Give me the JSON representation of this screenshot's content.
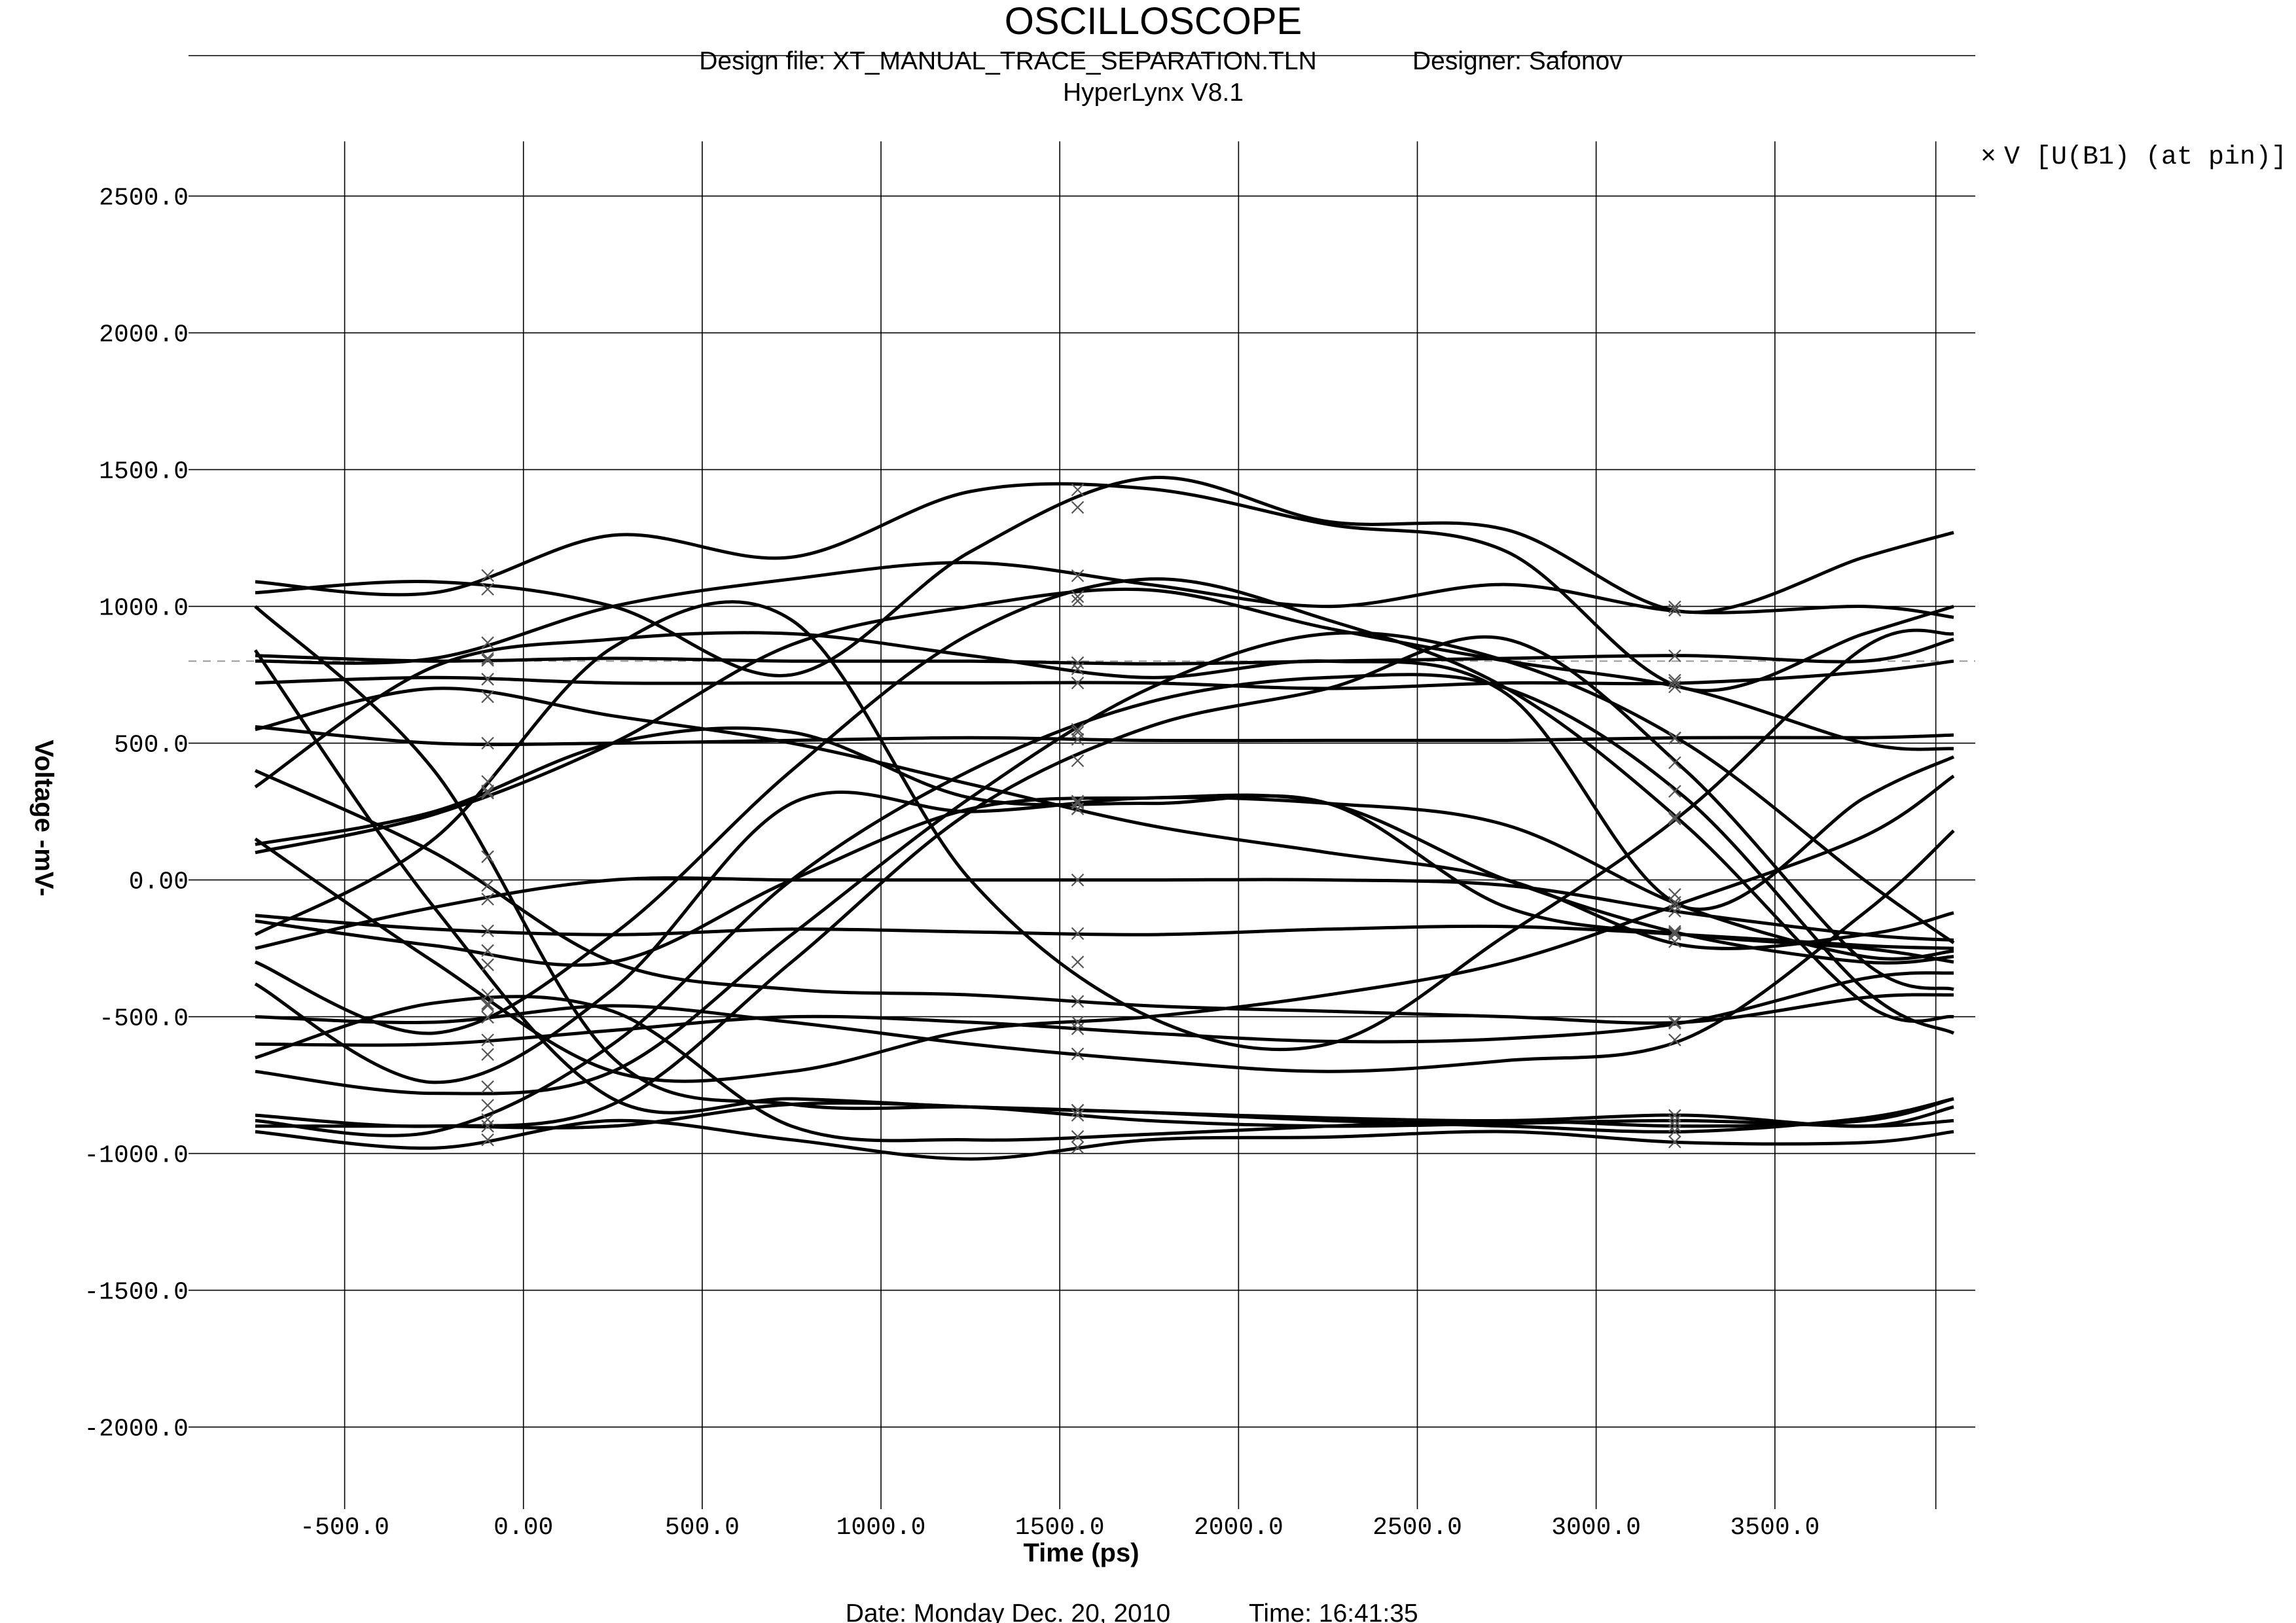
{
  "header": {
    "title": "OSCILLOSCOPE",
    "design_file": "Design file: XT_MANUAL_TRACE_SEPARATION.TLN",
    "designer": "Designer: Safonov",
    "tool": "HyperLynx V8.1"
  },
  "footer": {
    "date": "Date: Monday Dec. 20, 2010",
    "time": "Time: 16:41:35"
  },
  "legend": {
    "entry": "V [U(B1) (at pin)]",
    "marker": "×"
  },
  "chart_data": {
    "type": "line",
    "title": "OSCILLOSCOPE",
    "xlabel": "Time  (ps)",
    "ylabel": "Voltage -mV-",
    "xlim": [
      -750,
      4000
    ],
    "ylim": [
      -2300,
      2700
    ],
    "x_ticks": [
      -500,
      0,
      500,
      1000,
      1500,
      2000,
      2500,
      3000,
      3500
    ],
    "x_tick_labels": [
      "-500.0",
      "0.00",
      "500.0",
      "1000.0",
      "1500.0",
      "2000.0",
      "2500.0",
      "3000.0",
      "3500.0"
    ],
    "y_ticks": [
      2500,
      2000,
      1500,
      1000,
      500,
      0,
      -500,
      -1000,
      -1500,
      -2000
    ],
    "y_tick_labels": [
      "2500.0",
      "2000.0",
      "1500.0",
      "1000.0",
      "500.0",
      "0.00",
      "-500.0",
      "-1000.0",
      "-1500.0",
      "-2000.0"
    ],
    "x_gridlines": [
      -500,
      0,
      500,
      1000,
      1500,
      2000,
      2500,
      3000,
      3500,
      3950
    ],
    "threshold_mV": 800,
    "marker_times": [
      -100,
      1550,
      3220
    ],
    "grid": true,
    "legend_position": "top-right",
    "x": [
      -750,
      -250,
      250,
      750,
      1250,
      1750,
      2250,
      2750,
      3250,
      3750,
      4000
    ],
    "series": [
      {
        "values": [
          1090,
          1050,
          1260,
          1180,
          1420,
          1430,
          1300,
          1200,
          700,
          900,
          1000
        ]
      },
      {
        "values": [
          1050,
          1090,
          1000,
          750,
          1200,
          1470,
          1310,
          1280,
          980,
          1180,
          1270
        ]
      },
      {
        "values": [
          1000,
          400,
          -650,
          -820,
          -830,
          -850,
          -880,
          -900,
          -920,
          -870,
          -800
        ]
      },
      {
        "values": [
          840,
          -100,
          -800,
          -800,
          -830,
          -850,
          -870,
          -880,
          -860,
          -900,
          -830
        ]
      },
      {
        "values": [
          820,
          800,
          810,
          800,
          800,
          790,
          800,
          810,
          820,
          800,
          880
        ]
      },
      {
        "values": [
          800,
          810,
          1000,
          1100,
          1160,
          1080,
          1000,
          1080,
          980,
          1000,
          960
        ]
      },
      {
        "values": [
          720,
          740,
          720,
          720,
          720,
          720,
          700,
          720,
          720,
          760,
          800
        ]
      },
      {
        "values": [
          560,
          500,
          500,
          510,
          520,
          510,
          510,
          510,
          520,
          520,
          530
        ]
      },
      {
        "values": [
          400,
          100,
          -300,
          -400,
          -420,
          -460,
          -480,
          -500,
          -520,
          -430,
          -420
        ]
      },
      {
        "values": [
          340,
          780,
          880,
          900,
          820,
          740,
          800,
          680,
          -100,
          300,
          450
        ]
      },
      {
        "values": [
          130,
          250,
          500,
          540,
          300,
          280,
          280,
          -100,
          -200,
          -250,
          -300
        ]
      },
      {
        "values": [
          100,
          240,
          500,
          860,
          1000,
          1060,
          920,
          800,
          700,
          500,
          480
        ]
      },
      {
        "values": [
          -130,
          -180,
          -200,
          -180,
          -190,
          -200,
          -180,
          -170,
          -200,
          -240,
          -250
        ]
      },
      {
        "values": [
          -150,
          -240,
          -300,
          0,
          260,
          300,
          280,
          0,
          -200,
          -300,
          -280
        ]
      },
      {
        "values": [
          -200,
          150,
          850,
          950,
          0,
          -500,
          -600,
          -200,
          250,
          850,
          900
        ]
      },
      {
        "values": [
          -250,
          -100,
          0,
          0,
          0,
          0,
          0,
          -20,
          -120,
          -200,
          -220
        ]
      },
      {
        "values": [
          -380,
          -740,
          -400,
          280,
          250,
          300,
          280,
          200,
          -100,
          -280,
          -260
        ]
      },
      {
        "values": [
          -600,
          -600,
          -550,
          -500,
          -520,
          -560,
          -590,
          -580,
          -520,
          -360,
          -340
        ]
      },
      {
        "values": [
          -650,
          -450,
          -480,
          -900,
          -950,
          -930,
          -900,
          -880,
          -900,
          -880,
          -800
        ]
      },
      {
        "values": [
          -700,
          -780,
          -700,
          -200,
          300,
          700,
          900,
          800,
          500,
          0,
          -230
        ]
      },
      {
        "values": [
          -860,
          -900,
          -820,
          -300,
          250,
          560,
          700,
          880,
          400,
          -300,
          -400
        ]
      },
      {
        "values": [
          -900,
          -900,
          -900,
          -820,
          -830,
          -880,
          -900,
          -890,
          -880,
          -900,
          -880
        ]
      },
      {
        "values": [
          -920,
          -980,
          -880,
          -950,
          -1020,
          -950,
          -940,
          -920,
          -960,
          -960,
          -920
        ]
      },
      {
        "values": [
          -880,
          -920,
          -600,
          0,
          400,
          650,
          740,
          700,
          300,
          -400,
          -560
        ]
      },
      {
        "values": [
          -300,
          -560,
          -200,
          400,
          900,
          1100,
          950,
          700,
          200,
          -450,
          -500
        ]
      },
      {
        "values": [
          150,
          -300,
          -700,
          -700,
          -550,
          -500,
          -420,
          -300,
          -80,
          160,
          380
        ]
      },
      {
        "values": [
          550,
          700,
          600,
          500,
          350,
          200,
          100,
          0,
          -240,
          -200,
          -120
        ]
      },
      {
        "values": [
          -500,
          -520,
          -460,
          -520,
          -600,
          -660,
          -700,
          -660,
          -580,
          -120,
          180
        ]
      }
    ]
  }
}
